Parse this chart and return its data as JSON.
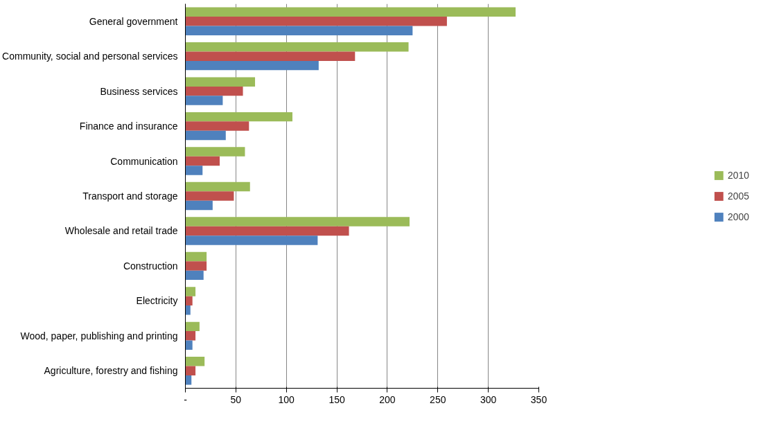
{
  "chart_data": {
    "type": "bar",
    "orientation": "horizontal",
    "categories": [
      "General government",
      "Community, social and personal services",
      "Business services",
      "Finance and insurance",
      "Communication",
      "Transport and storage",
      "Wholesale and retail trade",
      "Construction",
      "Electricity",
      "Wood, paper, publishing and printing",
      "Agriculture, forestry and fishing"
    ],
    "series": [
      {
        "name": "2010",
        "color": "#9bbb59",
        "values": [
          327,
          221,
          69,
          106,
          59,
          64,
          222,
          21,
          10,
          14,
          19
        ]
      },
      {
        "name": "2005",
        "color": "#c0504d",
        "values": [
          259,
          168,
          57,
          63,
          34,
          48,
          162,
          21,
          7,
          10,
          10
        ]
      },
      {
        "name": "2000",
        "color": "#4f81bd",
        "values": [
          225,
          132,
          37,
          40,
          17,
          27,
          131,
          18,
          5,
          7,
          6
        ]
      }
    ],
    "xlim": [
      0,
      350
    ],
    "xticks": [
      {
        "value": 0,
        "label": "-"
      },
      50,
      100,
      150,
      200,
      250,
      300,
      350
    ],
    "grid": "x",
    "legend": "right"
  }
}
